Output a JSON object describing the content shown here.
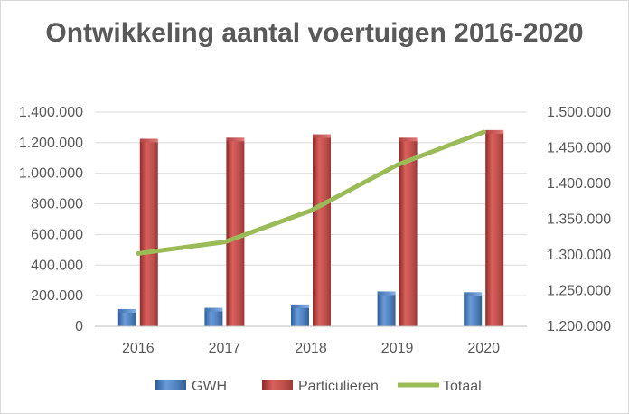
{
  "chart_data": {
    "type": "bar",
    "title": "Ontwikkeling aantal voertuigen 2016-2020",
    "categories": [
      "2016",
      "2017",
      "2018",
      "2019",
      "2020"
    ],
    "series": [
      {
        "name": "GWH",
        "type": "bar",
        "axis": "left",
        "color": "#4f81bd",
        "values": [
          95000,
          103000,
          125000,
          210000,
          205000
        ]
      },
      {
        "name": "Particulieren",
        "type": "bar",
        "axis": "left",
        "color": "#c0504d",
        "values": [
          1208000,
          1215000,
          1237000,
          1215000,
          1265000
        ]
      },
      {
        "name": "Totaal",
        "type": "line",
        "axis": "right",
        "color": "#9bbb59",
        "values": [
          1302000,
          1318000,
          1362000,
          1426000,
          1472000
        ]
      }
    ],
    "y_left": {
      "min": 0,
      "max": 1400000,
      "ticks": [
        "0",
        "200.000",
        "400.000",
        "600.000",
        "800.000",
        "1.000.000",
        "1.200.000",
        "1.400.000"
      ]
    },
    "y_right": {
      "min": 1200000,
      "max": 1500000,
      "ticks": [
        "1.200.000",
        "1.250.000",
        "1.300.000",
        "1.350.000",
        "1.400.000",
        "1.450.000",
        "1.500.000"
      ]
    },
    "gridlines": true,
    "legend_position": "bottom"
  }
}
